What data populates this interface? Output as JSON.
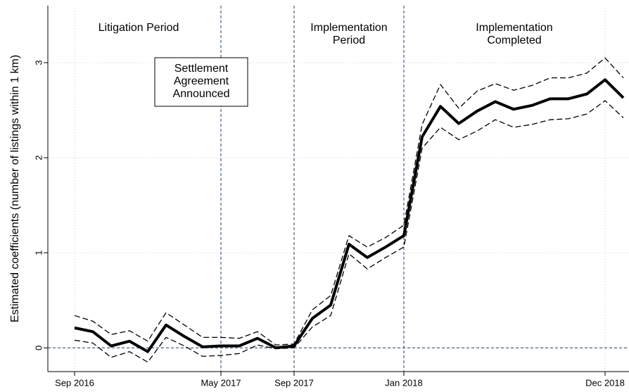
{
  "chart_data": {
    "type": "line",
    "ylabel": "Estimated coefficients (number of listings within 1 km)",
    "categories": [
      "Sep 2016",
      null,
      null,
      null,
      null,
      null,
      null,
      null,
      "May 2017",
      null,
      null,
      null,
      "Sep 2017",
      null,
      null,
      null,
      null,
      null,
      "Jan 2018",
      null,
      null,
      null,
      null,
      null,
      null,
      null,
      null,
      null,
      null,
      "Dec 2018",
      null
    ],
    "series": [
      {
        "color": "#000000",
        "style": "solid",
        "values": [
          0.21,
          0.17,
          0.02,
          0.07,
          -0.04,
          0.24,
          0.12,
          0.01,
          0.02,
          0.02,
          0.1,
          0.0,
          0.02,
          0.31,
          0.45,
          1.09,
          0.95,
          1.06,
          1.18,
          2.22,
          2.54,
          2.36,
          2.49,
          2.59,
          2.51,
          2.55,
          2.62,
          2.62,
          2.67,
          2.82,
          2.63
        ]
      },
      {
        "color": "#000000",
        "style": "dashed",
        "values": [
          0.34,
          0.28,
          0.14,
          0.18,
          0.07,
          0.37,
          0.24,
          0.11,
          0.11,
          0.1,
          0.17,
          0.03,
          0.04,
          0.4,
          0.55,
          1.18,
          1.06,
          1.16,
          1.29,
          2.35,
          2.77,
          2.52,
          2.7,
          2.78,
          2.71,
          2.76,
          2.84,
          2.84,
          2.89,
          3.05,
          2.84
        ]
      },
      {
        "color": "#000000",
        "style": "dashed",
        "values": [
          0.08,
          0.05,
          -0.1,
          -0.04,
          -0.15,
          0.11,
          0.02,
          -0.09,
          -0.08,
          -0.06,
          0.03,
          -0.01,
          0.0,
          0.22,
          0.34,
          0.99,
          0.83,
          0.95,
          1.06,
          2.1,
          2.32,
          2.19,
          2.28,
          2.4,
          2.32,
          2.35,
          2.4,
          2.41,
          2.46,
          2.6,
          2.42
        ]
      }
    ],
    "ylim": [
      -0.25,
      3.6
    ],
    "yticks": [
      0,
      1,
      2,
      3
    ],
    "grid": true,
    "reference_line": 0,
    "event_lines": [
      "May 2017",
      "Sep 2017",
      "Jan 2018"
    ],
    "annotations": [
      {
        "lines": [
          "Litigation Period"
        ],
        "boxed": false
      },
      {
        "lines": [
          "Settlement",
          "Agreement",
          "Announced"
        ],
        "boxed": true
      },
      {
        "lines": [
          "Implementation",
          "Period"
        ],
        "boxed": false
      },
      {
        "lines": [
          "Implementation",
          "Completed"
        ],
        "boxed": false
      }
    ]
  }
}
